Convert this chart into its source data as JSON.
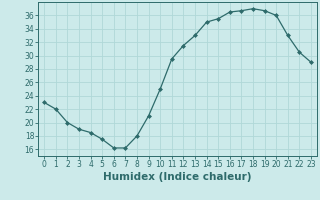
{
  "x": [
    0,
    1,
    2,
    3,
    4,
    5,
    6,
    7,
    8,
    9,
    10,
    11,
    12,
    13,
    14,
    15,
    16,
    17,
    18,
    19,
    20,
    21,
    22,
    23
  ],
  "y": [
    23,
    22,
    20,
    19,
    18.5,
    17.5,
    16.2,
    16.2,
    18,
    21,
    25,
    29.5,
    31.5,
    33,
    35,
    35.5,
    36.5,
    36.7,
    37,
    36.7,
    36,
    33,
    30.5,
    29
  ],
  "line_color": "#2e6b6b",
  "marker": "D",
  "marker_size": 2.0,
  "line_width": 0.9,
  "xlabel": "Humidex (Indice chaleur)",
  "xlabel_fontsize": 7.5,
  "background_color": "#cceaea",
  "grid_color": "#b0d8d8",
  "ylim": [
    15,
    38
  ],
  "xlim": [
    -0.5,
    23.5
  ],
  "yticks": [
    16,
    18,
    20,
    22,
    24,
    26,
    28,
    30,
    32,
    34,
    36
  ],
  "xticks": [
    0,
    1,
    2,
    3,
    4,
    5,
    6,
    7,
    8,
    9,
    10,
    11,
    12,
    13,
    14,
    15,
    16,
    17,
    18,
    19,
    20,
    21,
    22,
    23
  ],
  "tick_fontsize": 5.5,
  "spine_color": "#2e6b6b",
  "text_color": "#2e6b6b"
}
